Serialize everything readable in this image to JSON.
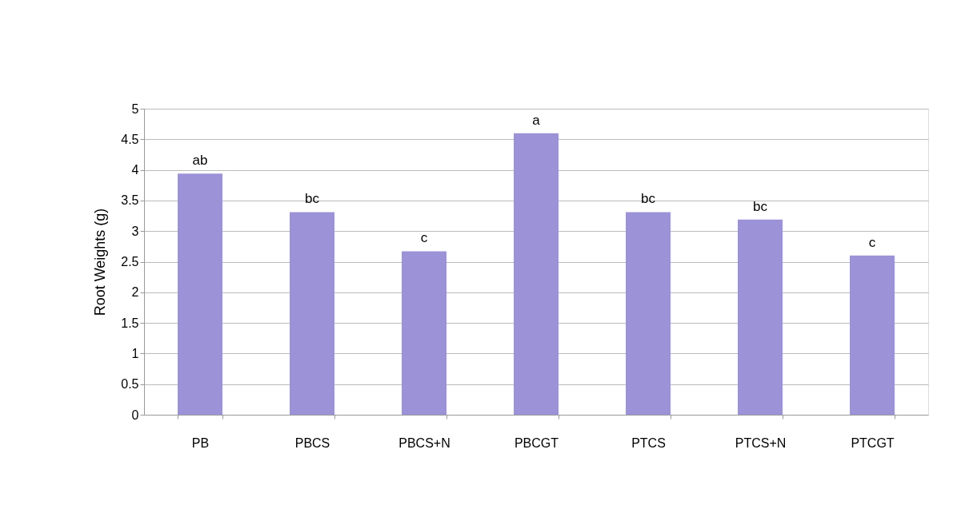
{
  "chart_data": {
    "type": "bar",
    "ylabel": "Root Weights (g)",
    "categories": [
      "PB",
      "PBCS",
      "PBCS+N",
      "PBCGT",
      "PTCS",
      "PTCS+N",
      "PTCGT"
    ],
    "values": [
      3.94,
      3.31,
      2.67,
      4.6,
      3.31,
      3.19,
      2.6
    ],
    "color": "#9b92d8",
    "ylim": [
      0,
      5
    ],
    "yticks": [
      0,
      0.5,
      1,
      1.5,
      2,
      2.5,
      3,
      3.5,
      4,
      4.5,
      5
    ],
    "grid": "y",
    "annotations": [
      {
        "text": "ab",
        "x": "PB",
        "y": 3.94
      },
      {
        "text": "bc",
        "x": "PBCS",
        "y": 3.31
      },
      {
        "text": "c",
        "x": "PBCS+N",
        "y": 2.67
      },
      {
        "text": "a",
        "x": "PBCGT",
        "y": 4.6
      },
      {
        "text": "bc",
        "x": "PTCS",
        "y": 3.31
      },
      {
        "text": "bc",
        "x": "PTCS+N",
        "y": 3.19
      },
      {
        "text": "c",
        "x": "PTCGT",
        "y": 2.6
      }
    ]
  }
}
